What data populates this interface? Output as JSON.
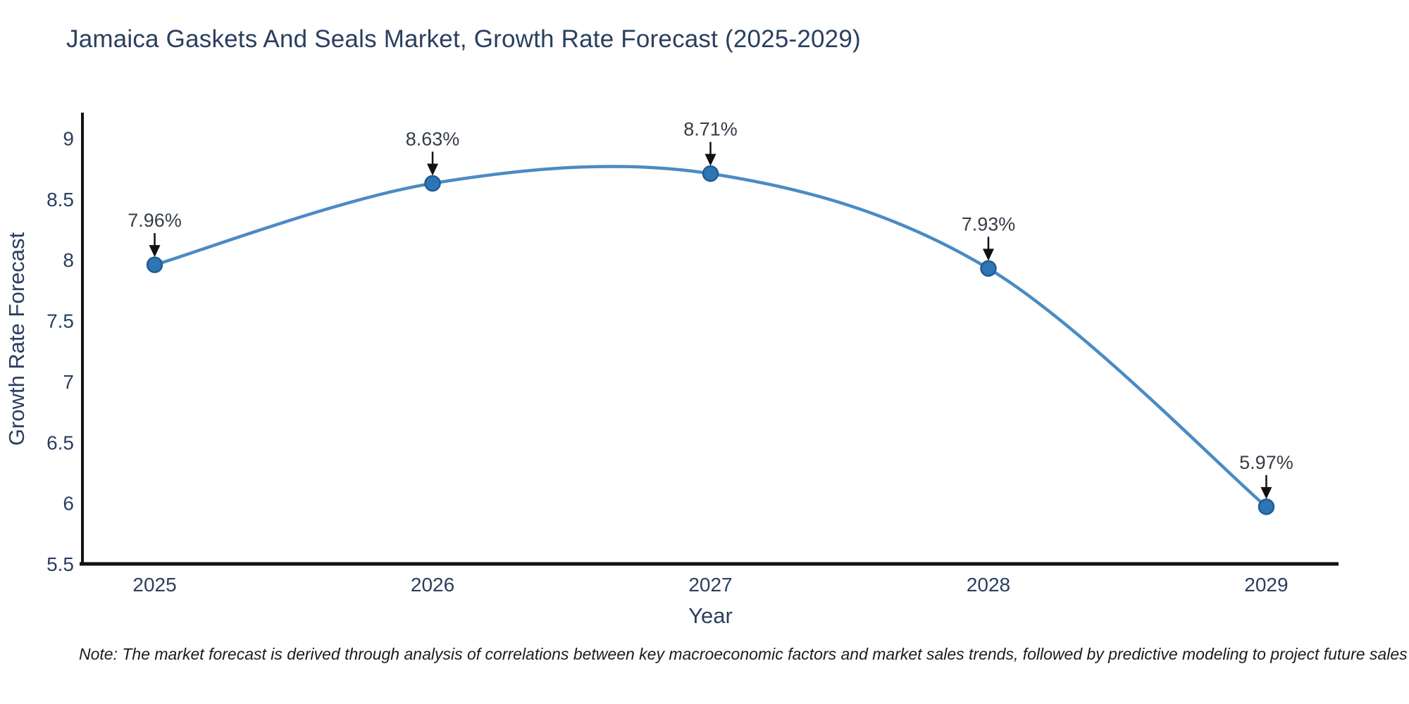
{
  "page": {
    "background": "#ffffff"
  },
  "header": {
    "title": "Jamaica Gaskets And Seals Market, Growth Rate Forecast (2025-2029)"
  },
  "footnote": {
    "text": "Note: The market forecast is derived through analysis of correlations between key macroeconomic factors and market sales trends, followed by predictive modeling to project future sales"
  },
  "chart_data": {
    "type": "line",
    "title": "Jamaica Gaskets And Seals Market, Growth Rate Forecast (2025-2029)",
    "xlabel": "Year",
    "ylabel": "Growth Rate Forecast",
    "x": [
      2025,
      2026,
      2027,
      2028,
      2029
    ],
    "y": [
      7.96,
      8.63,
      8.71,
      7.93,
      5.97
    ],
    "point_labels": [
      "7.96%",
      "8.63%",
      "8.71%",
      "7.93%",
      "5.97%"
    ],
    "xtick_labels": [
      "2025",
      "2026",
      "2027",
      "2028",
      "2029"
    ],
    "ytick_labels": [
      "5.5",
      "6",
      "6.5",
      "7",
      "7.5",
      "8",
      "8.5",
      "9"
    ],
    "xticks": [
      2025,
      2026,
      2027,
      2028,
      2029
    ],
    "yticks": [
      5.5,
      6,
      6.5,
      7,
      7.5,
      8,
      8.5,
      9
    ],
    "xlim": [
      2024.74,
      2029.26
    ],
    "ylim": [
      5.5,
      9.2
    ],
    "line_shape": "spline",
    "grid": false,
    "legend": false,
    "colors": {
      "line": "#4b8bc3",
      "marker_fill": "#2e75b6",
      "marker_stroke": "#1f5c94",
      "axis": "#111111",
      "tick_text": "#2a3f5f",
      "axis_title_text": "#2a3f5f",
      "annotation_text": "#353d47",
      "annotation_arrow": "#111111"
    }
  }
}
